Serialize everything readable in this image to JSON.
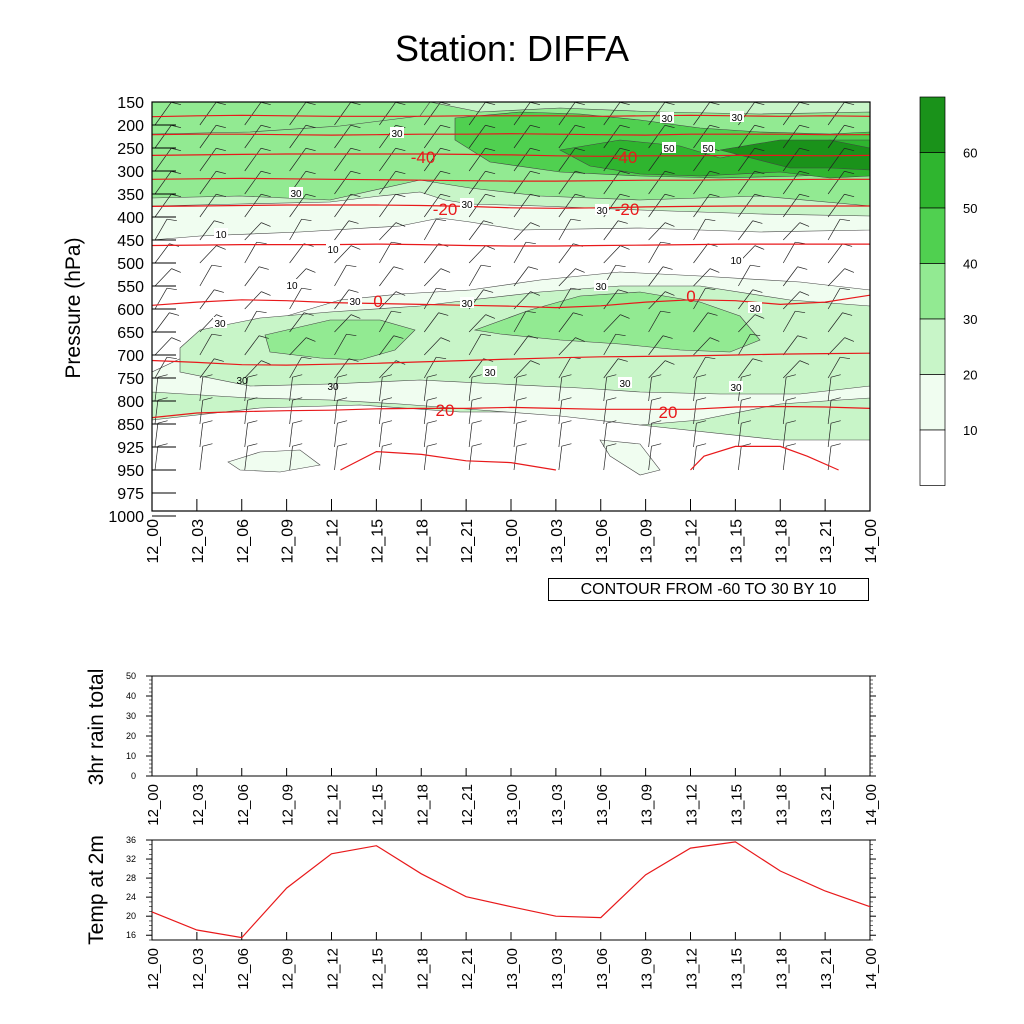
{
  "title": "Station: DIFFA",
  "colors": {
    "temp_contour": "#e8191b",
    "humidity_levels": [
      "#ffffff",
      "#f0fdf0",
      "#c8f5c8",
      "#92ea92",
      "#50d050",
      "#2fb52f",
      "#1a921a"
    ]
  },
  "time_labels": [
    "12_00",
    "12_03",
    "12_06",
    "12_09",
    "12_12",
    "12_15",
    "12_18",
    "12_21",
    "13_00",
    "13_03",
    "13_06",
    "13_09",
    "13_12",
    "13_15",
    "13_18",
    "13_21",
    "14_00"
  ],
  "contour_note": "CONTOUR FROM -60 TO 30 BY 10",
  "chart_data": [
    {
      "type": "contour",
      "name": "upper-air cross-section",
      "title": "Station: DIFFA",
      "ylabel": "Pressure (hPa)",
      "xlabel": "",
      "pressure_levels": [
        150,
        200,
        250,
        300,
        350,
        400,
        450,
        500,
        550,
        600,
        650,
        700,
        750,
        800,
        850,
        925,
        950,
        975,
        1000
      ],
      "pressure_tick_labels": [
        "150",
        "200",
        "250",
        "300",
        "350",
        "400",
        "450",
        "500",
        "550",
        "600",
        "650",
        "700",
        "750",
        "800",
        "850",
        "925",
        "950",
        "975",
        "1000"
      ],
      "shading_label_bar": [
        10,
        20,
        30,
        40,
        50,
        60
      ],
      "shading_tick_labels": [
        "10",
        "20",
        "30",
        "40",
        "50",
        "60"
      ],
      "humidity_contour_labels": [
        "30",
        "30",
        "50",
        "30",
        "50",
        "30",
        "30",
        "30",
        "10",
        "10",
        "10",
        "10",
        "30",
        "30",
        "30",
        "30",
        "30",
        "30",
        "30",
        "30"
      ],
      "temp_contour_labels": [
        "-40",
        "-40",
        "-20",
        "-20",
        "0",
        "0",
        "20",
        "20"
      ],
      "temperature_contours": [
        {
          "level": -60,
          "p": [
            182,
            180,
            179,
            180,
            181,
            181,
            181,
            180,
            180,
            180,
            181,
            180,
            179,
            180,
            181,
            180,
            181
          ]
        },
        {
          "level": -50,
          "p": [
            221,
            220,
            220,
            221,
            222,
            221,
            220,
            220,
            219,
            220,
            221,
            222,
            220,
            220,
            220,
            221,
            221
          ]
        },
        {
          "level": -40,
          "p": [
            266,
            265,
            264,
            263,
            263,
            263,
            263,
            264,
            265,
            267,
            268,
            267,
            267,
            266,
            266,
            267,
            266
          ]
        },
        {
          "level": -30,
          "p": [
            318,
            317,
            316,
            317,
            318,
            319,
            320,
            321,
            322,
            322,
            321,
            320,
            320,
            319,
            319,
            318,
            318
          ]
        },
        {
          "level": -20,
          "p": [
            377,
            376,
            375,
            374,
            374,
            374,
            375,
            377,
            380,
            381,
            380,
            378,
            377,
            376,
            376,
            376,
            376
          ]
        },
        {
          "level": -10,
          "p": [
            462,
            461,
            460,
            460,
            460,
            459,
            460,
            462,
            463,
            463,
            462,
            461,
            460,
            459,
            459,
            459,
            459
          ]
        },
        {
          "level": 0,
          "p": [
            592,
            585,
            580,
            582,
            586,
            588,
            590,
            592,
            594,
            597,
            593,
            585,
            580,
            582,
            590,
            585,
            570
          ]
        },
        {
          "level": 10,
          "p": [
            712,
            716,
            721,
            722,
            720,
            718,
            715,
            712,
            709,
            706,
            704,
            703,
            702,
            700,
            698,
            697,
            696
          ]
        },
        {
          "level": 20,
          "p": [
            836,
            826,
            823,
            821,
            820,
            817,
            816,
            816,
            814,
            816,
            818,
            818,
            818,
            813,
            812,
            813,
            816
          ]
        }
      ],
      "temp_30_segments": [
        {
          "t": [
            4.2,
            5.0,
            6.0,
            7.0,
            8.0,
            9.0
          ],
          "p": [
            950,
            930,
            933,
            940,
            942,
            950
          ]
        },
        {
          "t": [
            12.0,
            12.3,
            13.0,
            14.0,
            14.6,
            15.3
          ],
          "p": [
            950,
            935,
            923,
            923,
            935,
            950
          ]
        }
      ]
    },
    {
      "type": "line",
      "name": "3hr rain total",
      "ylabel": "3hr rain total",
      "ylim": [
        0,
        50
      ],
      "y_tick_labels": [
        "0",
        "10",
        "20",
        "30",
        "40",
        "50"
      ],
      "categories": [
        "12_00",
        "12_03",
        "12_06",
        "12_09",
        "12_12",
        "12_15",
        "12_18",
        "12_21",
        "13_00",
        "13_03",
        "13_06",
        "13_09",
        "13_12",
        "13_15",
        "13_18",
        "13_21",
        "14_00"
      ],
      "values": [
        0,
        0,
        0,
        0,
        0,
        0,
        0,
        0,
        0,
        0,
        0,
        0,
        0,
        0,
        0,
        0,
        0
      ]
    },
    {
      "type": "line",
      "name": "Temp at 2m",
      "ylabel": "Temp at 2m",
      "ylim": [
        15,
        36
      ],
      "y_tick_labels": [
        "16",
        "20",
        "24",
        "28",
        "32",
        "36"
      ],
      "categories": [
        "12_00",
        "12_03",
        "12_06",
        "12_09",
        "12_12",
        "12_15",
        "12_18",
        "12_21",
        "13_00",
        "13_03",
        "13_06",
        "13_09",
        "13_12",
        "13_15",
        "13_18",
        "13_21",
        "14_00"
      ],
      "values": [
        20.9,
        17.1,
        15.5,
        25.9,
        33.1,
        34.8,
        28.9,
        24.1,
        22.0,
        20.0,
        19.7,
        28.7,
        34.3,
        35.6,
        29.5,
        25.3,
        22.0
      ]
    }
  ]
}
